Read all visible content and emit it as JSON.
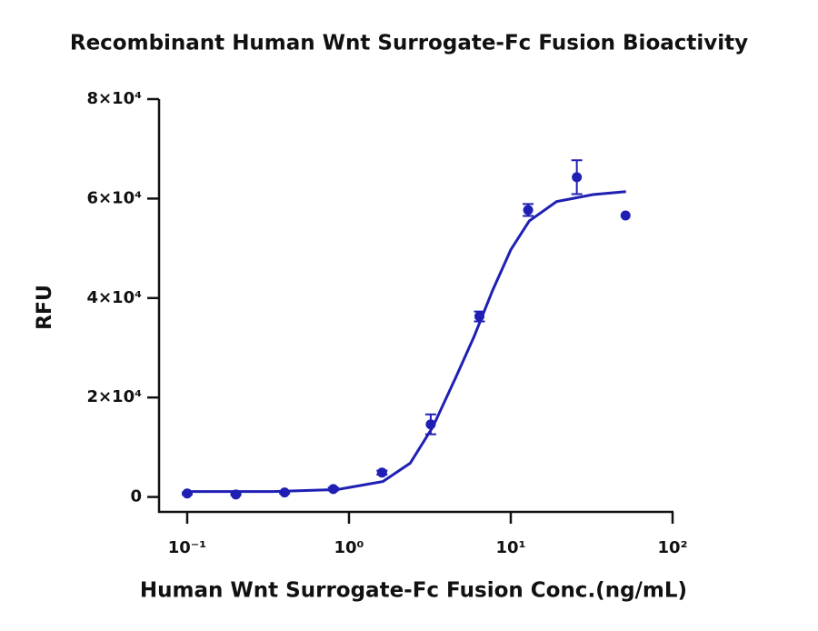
{
  "chart_data": {
    "type": "scatter",
    "title": "Recombinant Human Wnt Surrogate-Fc Fusion Bioactivity",
    "x_label": "Human Wnt Surrogate-Fc Fusion Conc.(ng/mL)",
    "y_label": "RFU",
    "x_scale": "log",
    "xlim": [
      0.067,
      100
    ],
    "xticks": [
      {
        "value": 0.1,
        "label": "10⁻¹"
      },
      {
        "value": 1,
        "label": "10⁰"
      },
      {
        "value": 10,
        "label": "10¹"
      },
      {
        "value": 100,
        "label": "10²"
      }
    ],
    "ylim": [
      -3000,
      80000
    ],
    "yticks": [
      0,
      {
        "value": 20000,
        "label": "2×10⁴"
      },
      {
        "value": 40000,
        "label": "4×10⁴"
      },
      {
        "value": 60000,
        "label": "6×10⁴"
      },
      {
        "value": 80000,
        "label": "8×10⁴"
      }
    ],
    "series": [
      {
        "mode": "markers",
        "color": "#1f1fb4",
        "x": [
          0.1,
          0.2,
          0.4,
          0.8,
          1.6,
          3.2,
          6.4,
          12.8,
          25.6,
          51.2
        ],
        "values": [
          700,
          500,
          900,
          1600,
          4900,
          14600,
          36300,
          57700,
          64300,
          56600
        ],
        "errors": [
          200,
          150,
          200,
          300,
          400,
          2000,
          1000,
          1200,
          3400,
          0
        ]
      },
      {
        "mode": "line",
        "color": "#1f1fb4",
        "x": [
          0.1,
          0.34,
          0.85,
          1.62,
          2.39,
          3.3,
          4.58,
          5.94,
          7.71,
          10,
          13,
          19.2,
          32.2,
          51.5
        ],
        "values": [
          1100,
          1100,
          1500,
          3100,
          6800,
          14100,
          24100,
          32300,
          41500,
          49700,
          55500,
          59400,
          60800,
          61400
        ]
      }
    ]
  }
}
